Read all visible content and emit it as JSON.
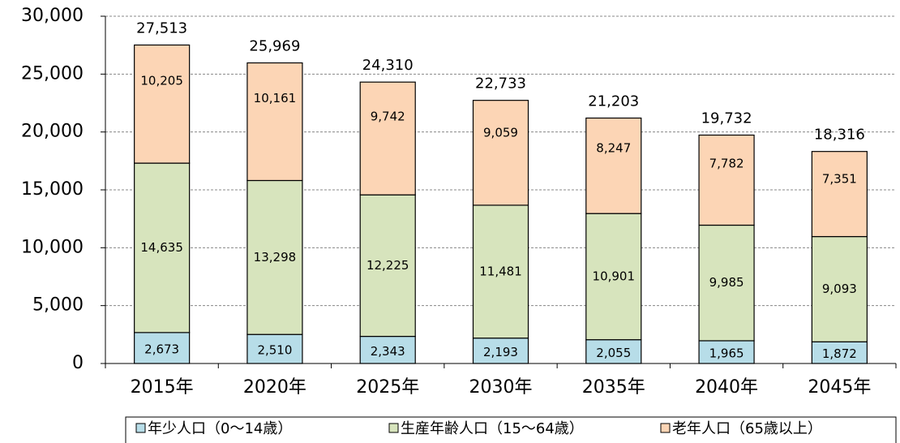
{
  "chart_data": {
    "type": "stacked_bar",
    "categories": [
      "2015年",
      "2020年",
      "2025年",
      "2030年",
      "2035年",
      "2040年",
      "2045年"
    ],
    "series": [
      {
        "name": "年少人口（0～14歳）",
        "color": "#b7dde8",
        "values": [
          2673,
          2510,
          2343,
          2193,
          2055,
          1965,
          1872
        ],
        "value_labels": [
          "2,673",
          "2,510",
          "2,343",
          "2,193",
          "2,055",
          "1,965",
          "1,872"
        ]
      },
      {
        "name": "生産年齢人口（15～64歳）",
        "color": "#d7e4bd",
        "values": [
          14635,
          13298,
          12225,
          11481,
          10901,
          9985,
          9093
        ],
        "value_labels": [
          "14,635",
          "13,298",
          "12,225",
          "11,481",
          "10,901",
          "9,985",
          "9,093"
        ]
      },
      {
        "name": "老年人口（65歳以上）",
        "color": "#fcd5b5",
        "values": [
          10205,
          10161,
          9742,
          9059,
          8247,
          7782,
          7351
        ],
        "value_labels": [
          "10,205",
          "10,161",
          "9,742",
          "9,059",
          "8,247",
          "7,782",
          "7,351"
        ]
      }
    ],
    "totals": [
      27513,
      25969,
      24310,
      22733,
      21203,
      19732,
      18316
    ],
    "total_labels": [
      "27,513",
      "25,969",
      "24,310",
      "22,733",
      "21,203",
      "19,732",
      "18,316"
    ],
    "ylim": [
      0,
      30000
    ],
    "yticks": [
      0,
      {
        "value": 5000,
        "label": "5,000"
      },
      {
        "value": 10000,
        "label": "10,000"
      },
      {
        "value": 15000,
        "label": "15,000"
      },
      {
        "value": 20000,
        "label": "20,000"
      },
      {
        "value": 25000,
        "label": "25,000"
      },
      {
        "value": 30000,
        "label": "30,000"
      }
    ],
    "grid": true,
    "legend": "bottom"
  }
}
